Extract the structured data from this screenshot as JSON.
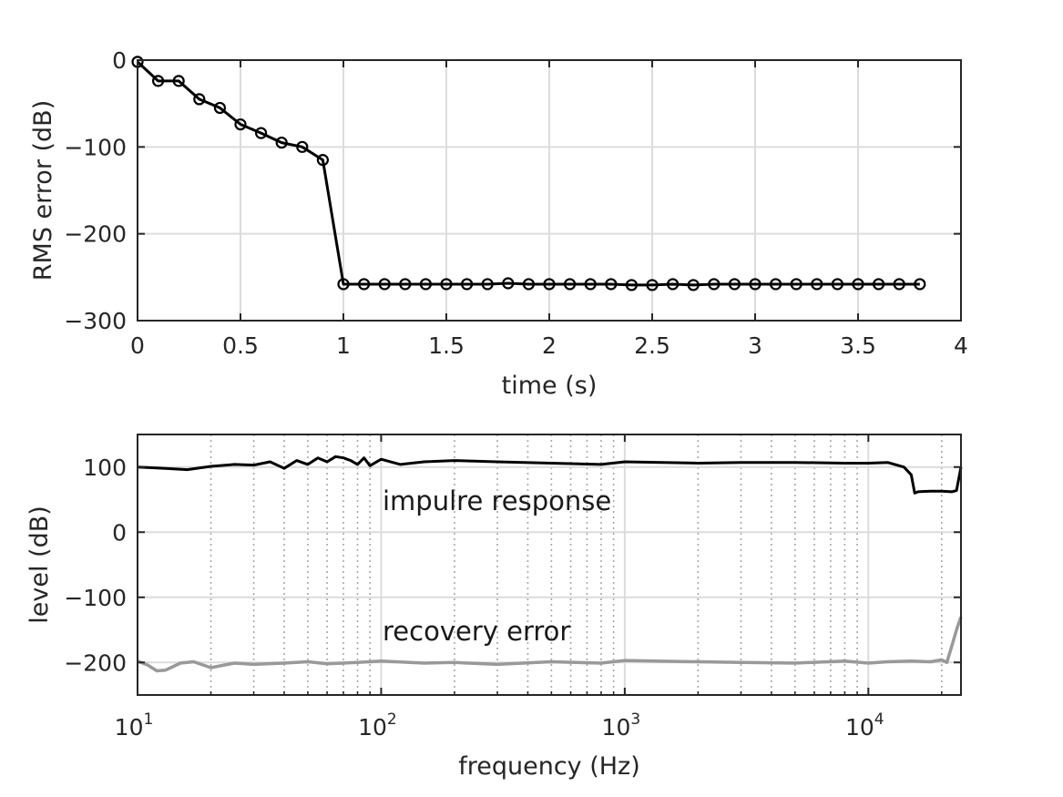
{
  "chart_data": [
    {
      "type": "line",
      "xlabel": "time (s)",
      "ylabel": "RMS error (dB)",
      "xlim": [
        0,
        4
      ],
      "ylim": [
        -300,
        0
      ],
      "xticks": [
        "0",
        "0.5",
        "1",
        "1.5",
        "2",
        "2.5",
        "3",
        "3.5",
        "4"
      ],
      "yticks": [
        "0",
        "−100",
        "−200",
        "−300"
      ],
      "xtick_values": [
        0,
        0.5,
        1,
        1.5,
        2,
        2.5,
        3,
        3.5,
        4
      ],
      "ytick_values": [
        0,
        -100,
        -200,
        -300
      ],
      "grid": true,
      "marker": "circle",
      "color": "#000000",
      "x": [
        0,
        0.1,
        0.2,
        0.3,
        0.4,
        0.5,
        0.6,
        0.7,
        0.8,
        0.9,
        1.0,
        1.1,
        1.2,
        1.3,
        1.4,
        1.5,
        1.6,
        1.7,
        1.8,
        1.9,
        2.0,
        2.1,
        2.2,
        2.3,
        2.4,
        2.5,
        2.6,
        2.7,
        2.8,
        2.9,
        3.0,
        3.1,
        3.2,
        3.3,
        3.4,
        3.5,
        3.6,
        3.7,
        3.8
      ],
      "y": [
        -2,
        -24,
        -24,
        -45,
        -55,
        -74,
        -84,
        -95,
        -100,
        -115,
        -258,
        -258,
        -258,
        -258,
        -258,
        -258,
        -258,
        -258,
        -257,
        -258,
        -258,
        -258,
        -258,
        -258,
        -259,
        -259,
        -258,
        -259,
        -258,
        -258,
        -258,
        -258,
        -258,
        -258,
        -258,
        -258,
        -258,
        -258,
        -258
      ]
    },
    {
      "type": "line",
      "xscale": "log",
      "xlabel": "frequency (Hz)",
      "ylabel": "level (dB)",
      "xlim": [
        10,
        24000
      ],
      "ylim": [
        -250,
        150
      ],
      "xticks": [
        {
          "base": "10",
          "exp": "1"
        },
        {
          "base": "10",
          "exp": "2"
        },
        {
          "base": "10",
          "exp": "3"
        },
        {
          "base": "10",
          "exp": "4"
        }
      ],
      "xtick_values": [
        10,
        100,
        1000,
        10000
      ],
      "yticks": [
        "100",
        "0",
        "−100",
        "−200"
      ],
      "ytick_values": [
        100,
        0,
        -100,
        -200
      ],
      "grid": true,
      "minor_grid": "dotted",
      "annotations": [
        "impulre response",
        "recovery error"
      ],
      "series": [
        {
          "color": "#000000",
          "x": [
            10,
            13,
            16,
            20,
            25,
            30,
            35,
            40,
            45,
            50,
            55,
            60,
            65,
            70,
            75,
            80,
            85,
            90,
            100,
            120,
            150,
            200,
            300,
            500,
            800,
            1000,
            2000,
            3000,
            5000,
            8000,
            10000,
            12000,
            14000,
            15000,
            15500,
            16000,
            18000,
            20000,
            22000,
            23000,
            24000
          ],
          "y": [
            100,
            98,
            96,
            101,
            104,
            103,
            108,
            98,
            110,
            104,
            114,
            108,
            116,
            114,
            110,
            104,
            114,
            102,
            112,
            104,
            108,
            110,
            108,
            106,
            104,
            108,
            106,
            107,
            107,
            106,
            106,
            107,
            100,
            88,
            60,
            62,
            63,
            63,
            62,
            64,
            100
          ]
        },
        {
          "color": "#999999",
          "x": [
            10,
            11,
            12,
            13,
            15,
            17,
            20,
            25,
            30,
            40,
            50,
            60,
            80,
            100,
            150,
            200,
            300,
            500,
            800,
            1000,
            2000,
            3000,
            5000,
            8000,
            10000,
            12000,
            15000,
            18000,
            20000,
            21000,
            22000,
            23000,
            24000
          ],
          "y": [
            -198,
            -204,
            -213,
            -212,
            -201,
            -199,
            -208,
            -201,
            -203,
            -201,
            -199,
            -202,
            -200,
            -198,
            -201,
            -200,
            -203,
            -199,
            -201,
            -197,
            -199,
            -200,
            -201,
            -198,
            -201,
            -199,
            -198,
            -199,
            -196,
            -200,
            -175,
            -150,
            -130
          ]
        }
      ]
    }
  ]
}
